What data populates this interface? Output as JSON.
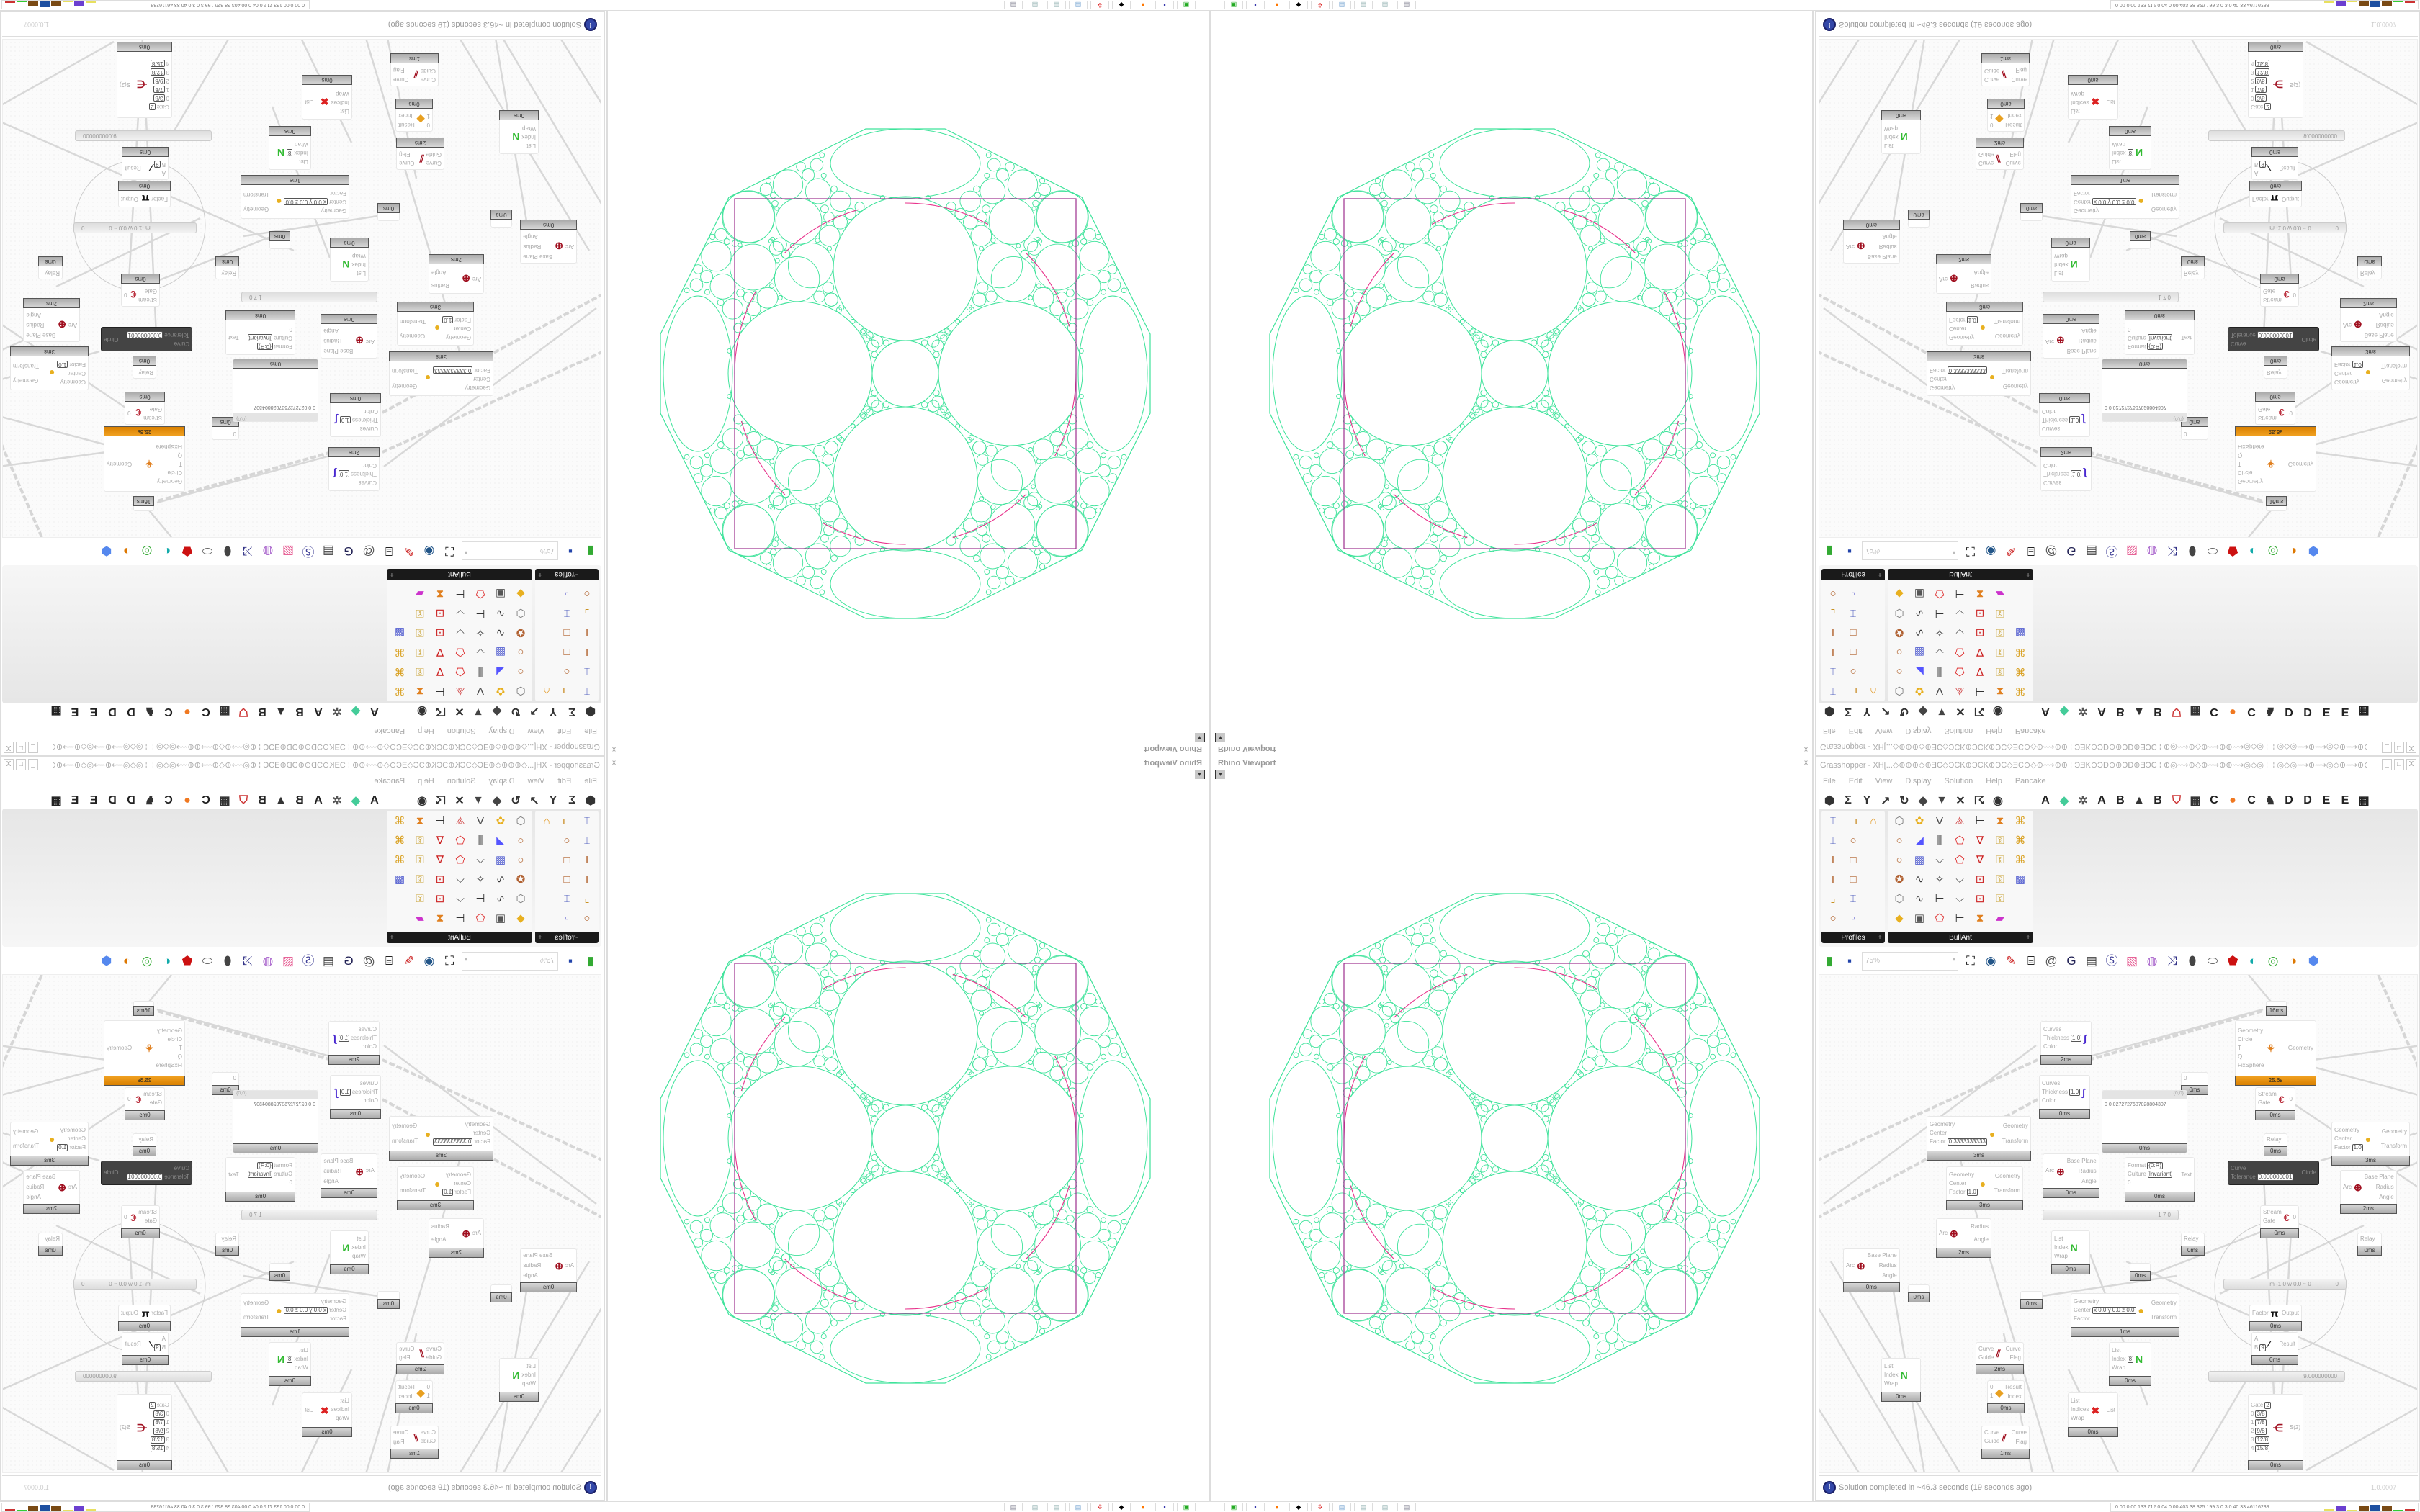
{
  "viewport": {
    "title": "Rhino Viewport",
    "dropdown": "▾",
    "close": "x",
    "colors": {
      "circles": "#3fe39b",
      "square": "#9c2f8e",
      "arcs": "#e8338c"
    }
  },
  "grasshopper": {
    "title": "Grasshopper - XH[...◇⊕⊕⊕◇⊕ƎC◇ƆCK⊕ƆCK⊕ƆC◇ƎC⊕◇⊕⟿⊕⊕⊹ƆƎK⊕ƆD⊕⊕ƆD⊕ƎƆC⊹⊕◎⟿⊕◇⊕⟿⊕⊕⟿◎◇◎⊹⊹◎◇◎⟿⊕⟿◎◇⊕⟿⊕⊕⊹ƆƎK⊕ƆD⊕...",
    "window_buttons": [
      "_",
      "□",
      "X"
    ],
    "menu": [
      "File",
      "Edit",
      "View",
      "Display",
      "Solution",
      "Help",
      "Pancake"
    ],
    "category_icons": [
      "hexagon-params",
      "sigma-maths",
      "y-sets",
      "arrow-vector",
      "loop-curve",
      "surface",
      "mesh",
      "intersect",
      "transform",
      "eye-display"
    ],
    "category_tabs": [
      "A",
      "leaf-icon",
      "gear-cat-icon",
      "A",
      "B",
      "mountain-icon",
      "B",
      "shield-icon",
      "grid-icon",
      "C",
      "orange-circle-icon",
      "C",
      "bird-icon",
      "D",
      "D",
      "E",
      "E",
      "grid2-icon"
    ],
    "palettes": [
      {
        "name": "Profiles",
        "icons": [
          "beam-profile",
          "channel",
          "tower",
          "beam-profile",
          "ring",
          "",
          "i-beam",
          "box-section",
          "",
          "i-beam",
          "box-section",
          "",
          "angle",
          "beam-profile",
          "",
          "ring",
          "small-squares",
          ""
        ]
      },
      {
        "name": "BullAnt",
        "icons": [
          "cube-gray",
          "flower",
          "v-frame",
          "triangle-node",
          "bracket",
          "warp",
          "red-frame",
          "ring",
          "plane-blue",
          "bars",
          "red-poly",
          "v-node",
          "lock",
          "red-frame",
          "ring",
          "blue-cube",
          "polyline",
          "red-poly",
          "v-node",
          "lock",
          "red-frame",
          "star-ring",
          "curve",
          "star-poly",
          "polyline",
          "frame-node",
          "lock",
          "blue-cube",
          "cube-gray",
          "curve",
          "bracket",
          "polyline",
          "frame-node",
          "lock",
          "",
          "diamond",
          "panel",
          "red-poly",
          "bracket",
          "warp",
          "rainbow",
          ""
        ]
      }
    ],
    "canvas_toolbar": {
      "zoom": "75%",
      "icons": [
        "open-file",
        "save-file",
        "zoom-extents",
        "preview-eye",
        "sketch",
        "cluster",
        "at-sign",
        "gha",
        "window",
        "search-s",
        "package",
        "balloon",
        "wires",
        "gray-bulb",
        "chain",
        "red-gem",
        "teal",
        "green-loop",
        "half-sphere",
        "blue-hex"
      ]
    },
    "nodes": [
      {
        "kind": "preview",
        "inputs": [
          [
            "Curves",
            ""
          ],
          [
            "Thickness",
            "1.0"
          ],
          [
            "Color",
            ""
          ]
        ],
        "outputs": [],
        "icon": "brush",
        "footer": "2ms"
      },
      {
        "kind": "preview",
        "inputs": [
          [
            "Curves",
            ""
          ],
          [
            "Thickness",
            "1.0"
          ],
          [
            "Color",
            ""
          ]
        ],
        "outputs": [],
        "icon": "brush",
        "footer": "0ms"
      },
      {
        "kind": "orange",
        "inputs": [
          [
            "Geometry",
            ""
          ],
          [
            "Circle",
            ""
          ],
          [
            "T",
            ""
          ],
          [
            "Q",
            ""
          ],
          [
            "FixSphere",
            ""
          ]
        ],
        "outputs": [
          "Geometry"
        ],
        "icon": "kangaroo",
        "footer": "25.6s"
      },
      {
        "kind": "param",
        "inputs": [
          [
            "0",
            ""
          ]
        ],
        "outputs": [],
        "icon": "",
        "footer": "0ms"
      },
      {
        "kind": "panel",
        "header": "{0;0}",
        "text": "0  0.0272727687028804307",
        "footer": "0ms"
      },
      {
        "kind": "gate",
        "inputs": [
          [
            "Stream",
            ""
          ],
          [
            "Gate",
            ""
          ]
        ],
        "outputs": [
          "0"
        ],
        "icon": "gate",
        "footer": "0ms"
      },
      {
        "kind": "relay",
        "inputs": [
          [
            "Relay",
            ""
          ]
        ],
        "outputs": [],
        "icon": "",
        "footer": "0ms"
      },
      {
        "kind": "scale",
        "inputs": [
          [
            "Geometry",
            ""
          ],
          [
            "Center",
            ""
          ],
          [
            "Factor",
            "0.3333333333"
          ]
        ],
        "outputs": [
          "Geometry",
          "Transform"
        ],
        "icon": "scale",
        "footer": "3ms"
      },
      {
        "kind": "scale",
        "inputs": [
          [
            "Geometry",
            ""
          ],
          [
            "Center",
            ""
          ],
          [
            "Factor",
            "1.0"
          ]
        ],
        "outputs": [
          "Geometry",
          "Transform"
        ],
        "icon": "scale",
        "footer": "3ms"
      },
      {
        "kind": "arc",
        "inputs": [
          [
            "Arc",
            ""
          ]
        ],
        "outputs": [
          "Base Plane",
          "Radius",
          "Angle"
        ],
        "icon": "target",
        "footer": "0ms"
      },
      {
        "kind": "format",
        "inputs": [
          [
            "Format",
            "{0:R}"
          ],
          [
            "Culture",
            "Invariant"
          ],
          [
            "0",
            ""
          ]
        ],
        "outputs": [
          "Text"
        ],
        "icon": "",
        "footer": "0ms"
      },
      {
        "kind": "dark",
        "inputs": [
          [
            "Curve",
            ""
          ],
          [
            "Tolerance",
            "0.000000001"
          ]
        ],
        "outputs": [
          "Circle"
        ],
        "icon": "",
        "footer": ""
      },
      {
        "kind": "scale",
        "inputs": [
          [
            "Geometry",
            ""
          ],
          [
            "Center",
            ""
          ],
          [
            "Factor",
            "1.0"
          ]
        ],
        "outputs": [
          "Geometry",
          "Transform"
        ],
        "icon": "scale",
        "footer": "3ms"
      },
      {
        "kind": "arc",
        "inputs": [
          [
            "Arc",
            ""
          ]
        ],
        "outputs": [
          "Base Plane",
          "Radius",
          "Angle"
        ],
        "icon": "target",
        "footer": "2ms"
      },
      {
        "kind": "slider",
        "text": "1 7 0"
      },
      {
        "kind": "gate",
        "inputs": [
          [
            "Stream",
            ""
          ],
          [
            "Gate",
            ""
          ]
        ],
        "outputs": [
          "0"
        ],
        "icon": "gate",
        "footer": "0ms"
      },
      {
        "kind": "param",
        "inputs": [],
        "outputs": [],
        "icon": "",
        "footer": "16ms"
      },
      {
        "kind": "arc",
        "inputs": [
          [
            "Arc",
            ""
          ]
        ],
        "outputs": [
          "Radius",
          "Angle"
        ],
        "icon": "target",
        "footer": "2ms"
      },
      {
        "kind": "arc",
        "inputs": [
          [
            "Arc",
            ""
          ]
        ],
        "outputs": [
          "Base Plane",
          "Radius",
          "Angle"
        ],
        "icon": "target",
        "footer": "0ms"
      },
      {
        "kind": "param",
        "inputs": [],
        "outputs": [],
        "icon": "",
        "footer": "0ms"
      },
      {
        "kind": "list",
        "inputs": [
          [
            "List",
            ""
          ],
          [
            "Index",
            ""
          ],
          [
            "Wrap",
            ""
          ]
        ],
        "outputs": [],
        "icon": "listitem",
        "footer": "0ms"
      },
      {
        "kind": "relay",
        "inputs": [
          [
            "Relay",
            ""
          ]
        ],
        "outputs": [],
        "icon": "",
        "footer": "0ms"
      },
      {
        "kind": "relay",
        "inputs": [
          [
            "Relay",
            ""
          ]
        ],
        "outputs": [],
        "icon": "",
        "footer": "0ms"
      },
      {
        "kind": "param",
        "inputs": [],
        "outputs": [],
        "icon": "",
        "footer": "0ms"
      },
      {
        "kind": "param",
        "inputs": [],
        "outputs": [],
        "icon": "",
        "footer": "0ms"
      },
      {
        "kind": "scale",
        "inputs": [
          [
            "Geometry",
            ""
          ],
          [
            "Center",
            "x 0.0  y 0.0  z 0.0"
          ],
          [
            "Factor",
            ""
          ]
        ],
        "outputs": [
          "Geometry",
          "Transform"
        ],
        "icon": "scale",
        "footer": "1ms"
      },
      {
        "kind": "slider",
        "text": "m -1.0  w 0.0  ~ 0  ··········· 0"
      },
      {
        "kind": "pi",
        "inputs": [
          [
            "Factor",
            ""
          ]
        ],
        "outputs": [
          "Output"
        ],
        "icon": "pi",
        "footer": "0ms"
      },
      {
        "kind": "division",
        "inputs": [
          [
            "A",
            ""
          ],
          [
            "B",
            "9"
          ]
        ],
        "outputs": [
          "Result"
        ],
        "icon": "divide",
        "footer": "0ms"
      },
      {
        "kind": "slider",
        "text": "9.000000000"
      },
      {
        "kind": "flip",
        "inputs": [
          [
            "Curve",
            ""
          ],
          [
            "Guide",
            ""
          ]
        ],
        "outputs": [
          "Curve",
          "Flag"
        ],
        "icon": "flip",
        "footer": "2ms"
      },
      {
        "kind": "list",
        "inputs": [
          [
            "List",
            ""
          ],
          [
            "Index",
            "8"
          ],
          [
            "Wrap",
            ""
          ]
        ],
        "outputs": [],
        "icon": "listitem",
        "footer": "0ms"
      },
      {
        "kind": "list",
        "inputs": [
          [
            "List",
            ""
          ],
          [
            "Index",
            ""
          ],
          [
            "Wrap",
            ""
          ]
        ],
        "outputs": [],
        "icon": "listitem",
        "footer": "0ms"
      },
      {
        "kind": "pick",
        "inputs": [
          [
            "0",
            ""
          ],
          [
            "1",
            ""
          ]
        ],
        "outputs": [
          "Result",
          "Index"
        ],
        "icon": "pick",
        "footer": "0ms"
      },
      {
        "kind": "cull",
        "inputs": [
          [
            "List",
            ""
          ],
          [
            "Indices",
            ""
          ],
          [
            "Wrap",
            ""
          ]
        ],
        "outputs": [
          "List"
        ],
        "icon": "cull",
        "footer": "0ms"
      },
      {
        "kind": "flip",
        "inputs": [
          [
            "Curve",
            ""
          ],
          [
            "Guide",
            ""
          ]
        ],
        "outputs": [
          "Curve",
          "Flag"
        ],
        "icon": "flip",
        "footer": "1ms"
      },
      {
        "kind": "filter",
        "inputs": [
          [
            "Gate",
            "2"
          ],
          [
            "0",
            "3/8"
          ],
          [
            "1",
            "7/8"
          ],
          [
            "2",
            "9/8"
          ],
          [
            "3",
            "12/8"
          ],
          [
            "4",
            "15/8"
          ]
        ],
        "outputs": [
          "S(2)"
        ],
        "icon": "filter",
        "footer": "0ms"
      }
    ],
    "status": {
      "message": "Solution completed in ~46.3 seconds (19 seconds ago)",
      "version": "1.0.0007"
    }
  },
  "taskbar": {
    "apps": [
      "terminal",
      "floppy-64",
      "firefox",
      "inkscape",
      "red-gear",
      "calculator",
      "notepad",
      "notepad",
      "scroll"
    ],
    "stats": "0.00 0.00  133  712  0.04 0.00  403  38  325  199  3.0  3.0  40  33  46116238"
  }
}
